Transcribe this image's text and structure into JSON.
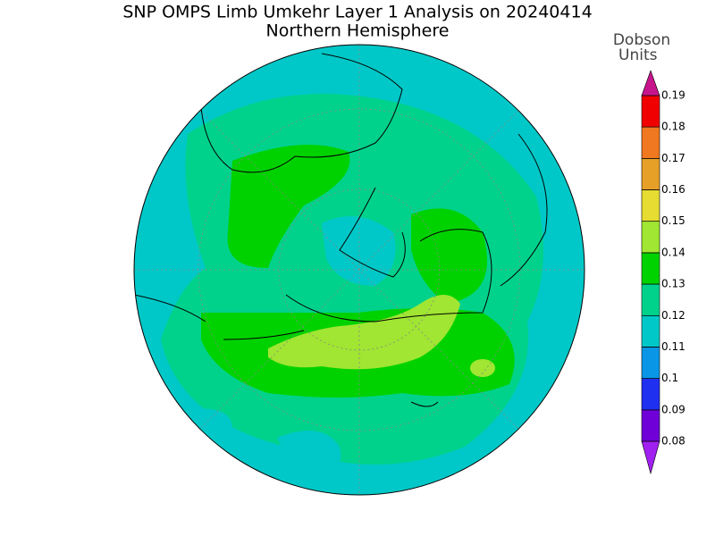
{
  "header": {
    "title": "SNP OMPS Limb Umkehr Layer 1 Analysis on 20240414",
    "subtitle": "Northern Hemisphere"
  },
  "colorbar": {
    "label_lines": [
      "Dobson",
      "Units"
    ],
    "ticks": [
      0.08,
      0.09,
      0.1,
      0.11,
      0.12,
      0.13,
      0.14,
      0.15,
      0.16,
      0.17,
      0.18,
      0.19
    ],
    "colors": [
      "#a020f0",
      "#7000d8",
      "#2030f0",
      "#0a96e6",
      "#00c8c8",
      "#00d28c",
      "#00d200",
      "#a0e632",
      "#e6dc32",
      "#e6a028",
      "#f07820",
      "#f00000",
      "#c8148c"
    ]
  }
}
